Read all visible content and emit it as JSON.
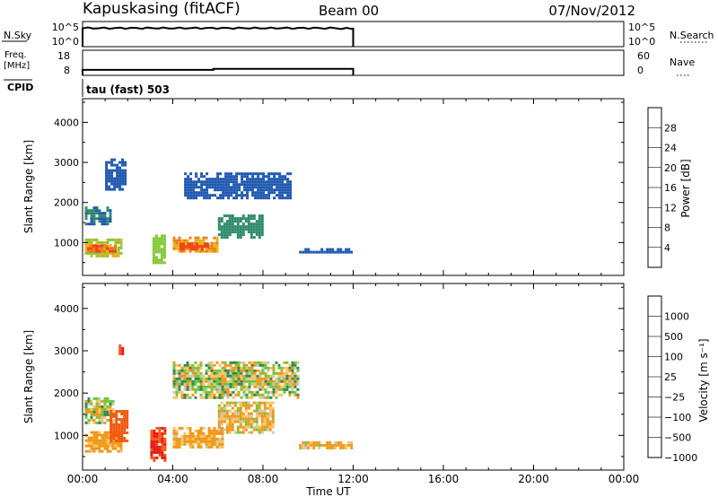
{
  "header": {
    "station": "Kapuskasing (fitACF)",
    "beam": "Beam 00",
    "date": "07/Nov/2012"
  },
  "side_labels": {
    "nsky": "N.Sky",
    "freq_top": "Freq.",
    "freq_bottom": "[MHz]",
    "cpid": "CPID",
    "nsearch": "N.Search",
    "nave": "Nave",
    "cpid_value": "tau (fast) 503"
  },
  "axis_text": {
    "nsky_ticks": [
      "10^5",
      "10^0"
    ],
    "nsearch_ticks": [
      "10^5",
      "10^0"
    ],
    "freq_ticks": [
      "18",
      "8"
    ],
    "nave_ticks": [
      "60",
      "0"
    ],
    "slant_range_ticks": [
      "4000",
      "3000",
      "2000",
      "1000"
    ],
    "slant_range_label": "Slant Range [km]",
    "time_ticks": [
      "00:00",
      "04:00",
      "08:00",
      "12:00",
      "16:00",
      "20:00",
      "00:00"
    ],
    "time_label": "Time UT",
    "power_ticks": [
      "28",
      "24",
      "20",
      "16",
      "12",
      "8",
      "4"
    ],
    "power_label": "Power [dB]",
    "velocity_ticks": [
      "1000",
      "500",
      "100",
      "25",
      "−25",
      "−100",
      "−500",
      "−1000"
    ],
    "velocity_label": "Velocity [m s⁻¹]"
  },
  "colors": {
    "power_scale": [
      "#1010ee",
      "#1e58b0",
      "#2e8a6a",
      "#86c838",
      "#e8b21c",
      "#f07c16",
      "#f04418",
      "#dd1010"
    ],
    "velocity_scale": [
      "#e81414",
      "#f05a10",
      "#f29816",
      "#f4c468",
      "#c8c8bc",
      "#6cc838",
      "#2e8a56",
      "#1e4cb0"
    ]
  },
  "chart_data": [
    {
      "type": "line",
      "name": "noise sky / search",
      "x": [
        0,
        12
      ],
      "x_unit": "hours UT",
      "series": [
        {
          "name": "N.Sky",
          "level_fraction": 0.72,
          "x_range": [
            0,
            12
          ]
        }
      ]
    },
    {
      "type": "line",
      "name": "frequency / nave",
      "x_unit": "hours UT",
      "series": [
        {
          "name": "Freq. [MHz]",
          "segments": [
            {
              "x": [
                0,
                5.8
              ],
              "y": 10.2
            },
            {
              "x": [
                5.8,
                12
              ],
              "y": 10.6
            }
          ]
        }
      ]
    },
    {
      "type": "heatmap",
      "title": "Power",
      "x_unit": "hours UT",
      "y_unit": "km",
      "xlim": [
        0,
        24
      ],
      "ylim": [
        180,
        4590
      ],
      "color_label": "Power [dB]",
      "color_levels": [
        0,
        4,
        8,
        12,
        16,
        20,
        24,
        28,
        32
      ],
      "regions": [
        {
          "desc": "near range echoes",
          "x": [
            0.1,
            1.7
          ],
          "y": [
            650,
            1100
          ],
          "value": 16
        },
        {
          "desc": "near range core",
          "x": [
            0.2,
            1.4
          ],
          "y": [
            750,
            950
          ],
          "value": 24
        },
        {
          "desc": "band 1500-1900 km",
          "x": [
            0.1,
            1.2
          ],
          "y": [
            1450,
            1900
          ],
          "value": 8
        },
        {
          "desc": "scattered high",
          "x": [
            1.0,
            1.9
          ],
          "y": [
            2300,
            3100
          ],
          "value": 6
        },
        {
          "desc": "morning patch",
          "x": [
            3.1,
            3.6
          ],
          "y": [
            500,
            1200
          ],
          "value": 14
        },
        {
          "desc": "main afternoon band",
          "x": [
            4.0,
            6.0
          ],
          "y": [
            750,
            1150
          ],
          "value": 20
        },
        {
          "desc": "main afternoon core",
          "x": [
            4.3,
            5.6
          ],
          "y": [
            850,
            1000
          ],
          "value": 26
        },
        {
          "desc": "mid band",
          "x": [
            6.0,
            8.0
          ],
          "y": [
            1100,
            1700
          ],
          "value": 10
        },
        {
          "desc": "upper arc",
          "x": [
            4.5,
            9.2
          ],
          "y": [
            2100,
            2750
          ],
          "value": 6
        },
        {
          "desc": "late band",
          "x": [
            9.6,
            11.9
          ],
          "y": [
            730,
            860
          ],
          "value": 6
        }
      ]
    },
    {
      "type": "heatmap",
      "title": "Velocity",
      "x_unit": "hours UT",
      "y_unit": "km",
      "xlim": [
        0,
        24
      ],
      "ylim": [
        180,
        4590
      ],
      "color_label": "Velocity [m s⁻¹]",
      "color_levels": [
        -1500,
        -1000,
        -500,
        -100,
        -25,
        25,
        100,
        500,
        1000,
        1500
      ],
      "regions": [
        {
          "desc": "near range echoes",
          "x": [
            0.1,
            1.7
          ],
          "y": [
            650,
            1100
          ],
          "value": -200
        },
        {
          "desc": "near range gray",
          "x": [
            0.1,
            1.3
          ],
          "y": [
            1300,
            1900
          ],
          "value": 0
        },
        {
          "desc": "strong negative streak",
          "x": [
            1.2,
            2.0
          ],
          "y": [
            850,
            1600
          ],
          "value": -800
        },
        {
          "desc": "high isolated",
          "x": [
            1.6,
            1.8
          ],
          "y": [
            2900,
            3150
          ],
          "value": -900
        },
        {
          "desc": "morning patch",
          "x": [
            3.0,
            3.7
          ],
          "y": [
            400,
            1200
          ],
          "value": -1000
        },
        {
          "desc": "main afternoon band",
          "x": [
            4.0,
            6.2
          ],
          "y": [
            700,
            1200
          ],
          "value": -200
        },
        {
          "desc": "mid band",
          "x": [
            6.0,
            8.5
          ],
          "y": [
            1100,
            1800
          ],
          "value": -100
        },
        {
          "desc": "upper arc",
          "x": [
            4.0,
            9.5
          ],
          "y": [
            1900,
            2750
          ],
          "value": 0
        },
        {
          "desc": "late band",
          "x": [
            9.6,
            11.9
          ],
          "y": [
            730,
            860
          ],
          "value": -150
        }
      ]
    }
  ]
}
